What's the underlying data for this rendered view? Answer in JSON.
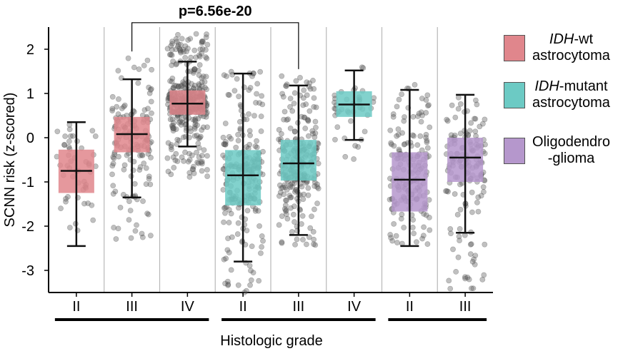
{
  "chart_data": {
    "type": "box",
    "ylabel": "SCNN risk (z-scored)",
    "xlabel": "Histologic grade",
    "ylim": [
      -3.5,
      2.5
    ],
    "yticks": [
      2,
      1,
      0,
      -1,
      -2,
      -3
    ],
    "annotation": "p=6.56e-20",
    "colors": {
      "IDH-wt astrocytoma": "#e0868c",
      "IDH-mutant astrocytoma": "#6ccac4",
      "Oligodendroglioma": "#b597cc"
    },
    "boxes": [
      {
        "grade": "II",
        "group": "IDH-wt astrocytoma",
        "whisker_low": -2.45,
        "q1": -1.25,
        "median": -0.75,
        "q3": -0.27,
        "whisker_high": 0.35,
        "jitter_min": -2.45,
        "jitter_max": 0.35
      },
      {
        "grade": "III",
        "group": "IDH-wt astrocytoma",
        "whisker_low": -1.35,
        "q1": -0.33,
        "median": 0.08,
        "q3": 0.47,
        "whisker_high": 1.32,
        "jitter_min": -2.3,
        "jitter_max": 1.8
      },
      {
        "grade": "IV",
        "group": "IDH-wt astrocytoma",
        "whisker_low": -0.2,
        "q1": 0.52,
        "median": 0.77,
        "q3": 1.07,
        "whisker_high": 1.72,
        "jitter_min": -0.9,
        "jitter_max": 2.4
      },
      {
        "grade": "II",
        "group": "IDH-mutant astrocytoma",
        "whisker_low": -2.8,
        "q1": -1.53,
        "median": -0.85,
        "q3": -0.28,
        "whisker_high": 1.45,
        "jitter_min": -3.5,
        "jitter_max": 1.5
      },
      {
        "grade": "III",
        "group": "IDH-mutant astrocytoma",
        "whisker_low": -2.2,
        "q1": -0.97,
        "median": -0.58,
        "q3": -0.05,
        "whisker_high": 1.18,
        "jitter_min": -2.45,
        "jitter_max": 1.4
      },
      {
        "grade": "IV",
        "group": "IDH-mutant astrocytoma",
        "whisker_low": -0.05,
        "q1": 0.47,
        "median": 0.75,
        "q3": 1.05,
        "whisker_high": 1.52,
        "jitter_min": -0.55,
        "jitter_max": 1.8
      },
      {
        "grade": "II",
        "group": "Oligodendroglioma",
        "whisker_low": -2.45,
        "q1": -1.67,
        "median": -0.95,
        "q3": -0.33,
        "whisker_high": 1.08,
        "jitter_min": -2.45,
        "jitter_max": 1.2
      },
      {
        "grade": "III",
        "group": "Oligodendroglioma",
        "whisker_low": -2.15,
        "q1": -1.0,
        "median": -0.45,
        "q3": 0.0,
        "whisker_high": 0.97,
        "jitter_min": -3.45,
        "jitter_max": 1.0
      }
    ]
  },
  "legend": [
    {
      "italic": "IDH",
      "rest_line1": "-wt",
      "line2": "astrocytoma",
      "color": "#e0868c"
    },
    {
      "italic": "IDH",
      "rest_line1": "-mutant",
      "line2": "astrocytoma",
      "color": "#6ccac4"
    },
    {
      "italic": "",
      "rest_line1": "Oligodendro",
      "line2": "-glioma",
      "color": "#b597cc"
    }
  ]
}
